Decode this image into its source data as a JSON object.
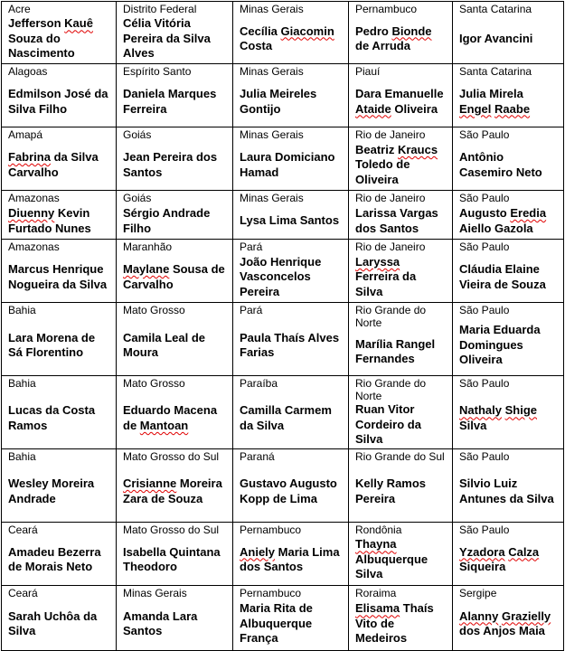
{
  "table": {
    "rows": [
      [
        {
          "state": "Acre",
          "name": "Jefferson Kauê Souza do Nascimento",
          "flagged": [
            "Kauê"
          ]
        },
        {
          "state": "Distrito Federal",
          "name": "Célia Vitória Pereira da Silva Alves",
          "flagged": []
        },
        {
          "state": "Minas Gerais",
          "name": "Cecília Giacomin Costa",
          "flagged": [
            "Giacomin"
          ]
        },
        {
          "state": "Pernambuco",
          "name": "Pedro Bionde de Arruda",
          "flagged": [
            "Bionde"
          ]
        },
        {
          "state": "Santa Catarina",
          "name": "Igor Avancini",
          "flagged": []
        }
      ],
      [
        {
          "state": "Alagoas",
          "name": "Edmilson José da Silva Filho",
          "flagged": []
        },
        {
          "state": "Espírito Santo",
          "name": "Daniela Marques Ferreira",
          "flagged": []
        },
        {
          "state": "Minas Gerais",
          "name": "Julia Meireles Gontijo",
          "flagged": []
        },
        {
          "state": "Piauí",
          "name": "Dara Emanuelle Ataide Oliveira",
          "flagged": [
            "Ataide"
          ]
        },
        {
          "state": "Santa Catarina",
          "name": "Julia Mirela Engel Raabe",
          "flagged": [
            "Engel",
            "Raabe"
          ]
        }
      ],
      [
        {
          "state": "Amapá",
          "name": "Fabrina da Silva Carvalho",
          "flagged": [
            "Fabrina"
          ]
        },
        {
          "state": "Goiás",
          "name": "Jean Pereira dos Santos",
          "flagged": []
        },
        {
          "state": "Minas Gerais",
          "name": "Laura Domiciano Hamad",
          "flagged": []
        },
        {
          "state": "Rio de Janeiro",
          "name": "Beatriz Kraucs Toledo de Oliveira",
          "flagged": [
            "Kraucs"
          ]
        },
        {
          "state": "São Paulo",
          "name": "Antônio Casemiro Neto",
          "flagged": []
        }
      ],
      [
        {
          "state": "Amazonas",
          "name": "Diuenny Kevin Furtado Nunes",
          "flagged": [
            "Diuenny"
          ]
        },
        {
          "state": "Goiás",
          "name": "Sérgio Andrade Filho",
          "flagged": []
        },
        {
          "state": "Minas Gerais",
          "name": "Lysa Lima Santos",
          "flagged": []
        },
        {
          "state": "Rio de Janeiro",
          "name": "Larissa Vargas dos Santos",
          "flagged": []
        },
        {
          "state": "São Paulo",
          "name": "Augusto Eredia Aiello Gazola",
          "flagged": [
            "Eredia"
          ]
        }
      ],
      [
        {
          "state": "Amazonas",
          "name": "Marcus Henrique Nogueira da Silva",
          "flagged": []
        },
        {
          "state": "Maranhão",
          "name": "Maylane Sousa de Carvalho",
          "flagged": [
            "Maylane"
          ]
        },
        {
          "state": "Pará",
          "name": "João Henrique Vasconcelos Pereira",
          "flagged": []
        },
        {
          "state": "Rio de Janeiro",
          "name": "Laryssa Ferreira da Silva",
          "flagged": [
            "Laryssa"
          ]
        },
        {
          "state": "São Paulo",
          "name": "Cláudia Elaine Vieira de Souza",
          "flagged": []
        }
      ],
      [
        {
          "state": "Bahia",
          "name": "Lara Morena de Sá Florentino",
          "flagged": []
        },
        {
          "state": "Mato Grosso",
          "name": "Camila Leal de Moura",
          "flagged": []
        },
        {
          "state": "Pará",
          "name": "Paula Thaís Alves Farias",
          "flagged": []
        },
        {
          "state": "Rio Grande do Norte",
          "name": "Marília Rangel Fernandes",
          "flagged": []
        },
        {
          "state": "São Paulo",
          "name": "Maria Eduarda Domingues Oliveira",
          "flagged": []
        }
      ],
      [
        {
          "state": "Bahia",
          "name": "Lucas da Costa Ramos",
          "flagged": []
        },
        {
          "state": "Mato Grosso",
          "name": "Eduardo Macena de Mantoan",
          "flagged": [
            "Mantoan"
          ]
        },
        {
          "state": "Paraíba",
          "name": "Camilla Carmem da Silva",
          "flagged": []
        },
        {
          "state": "Rio Grande do Norte",
          "name": "Ruan Vitor Cordeiro da Silva",
          "flagged": []
        },
        {
          "state": "São Paulo",
          "name": "Nathaly Shige Silva",
          "flagged": [
            "Nathaly",
            "Shige"
          ]
        }
      ],
      [
        {
          "state": "Bahia",
          "name": "Wesley Moreira Andrade",
          "flagged": []
        },
        {
          "state": "Mato Grosso do Sul",
          "name": "Crisianne Moreira Zara de Souza",
          "flagged": [
            "Crisianne"
          ]
        },
        {
          "state": "Paraná",
          "name": "Gustavo Augusto Kopp de Lima",
          "flagged": []
        },
        {
          "state": "Rio Grande do Sul",
          "name": "Kelly Ramos Pereira",
          "flagged": []
        },
        {
          "state": "São Paulo",
          "name": "Silvio Luiz Antunes da Silva",
          "flagged": []
        }
      ],
      [
        {
          "state": "Ceará",
          "name": "Amadeu Bezerra de Morais Neto",
          "flagged": []
        },
        {
          "state": "Mato Grosso do Sul",
          "name": "Isabella Quintana Theodoro",
          "flagged": []
        },
        {
          "state": "Pernambuco",
          "name": "Aniely Maria Lima dos Santos",
          "flagged": [
            "Aniely"
          ]
        },
        {
          "state": "Rondônia",
          "name": "Thayna Albuquerque Silva",
          "flagged": [
            "Thayna"
          ]
        },
        {
          "state": "São Paulo",
          "name": "Yzadora Calza Siqueira",
          "flagged": [
            "Yzadora",
            "Calza"
          ]
        }
      ],
      [
        {
          "state": "Ceará",
          "name": "Sarah Uchôa da Silva",
          "flagged": []
        },
        {
          "state": "Minas Gerais",
          "name": "Amanda Lara Santos",
          "flagged": []
        },
        {
          "state": "Pernambuco",
          "name": "Maria Rita de Albuquerque França",
          "flagged": []
        },
        {
          "state": "Roraima",
          "name": "Elisama Thaís Vito de Medeiros",
          "flagged": [
            "Elisama"
          ]
        },
        {
          "state": "Sergipe",
          "name": "Alanny Grazielly dos Anjos Maia",
          "flagged": [
            "Alanny",
            "Grazielly"
          ]
        }
      ]
    ]
  },
  "colors": {
    "spellcheck_underline": "#e00000",
    "border": "#000000"
  }
}
